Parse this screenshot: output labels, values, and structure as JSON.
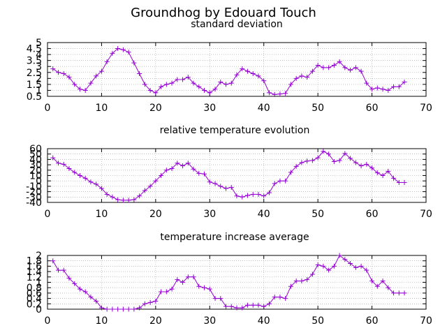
{
  "title": "Groundhog by Edouard Touch",
  "colors": {
    "series": "#9400d3",
    "grid": "#a0a0a0",
    "axis": "#000000"
  },
  "chart_data": [
    {
      "type": "line",
      "title": "standard deviation",
      "xlim": [
        0,
        70
      ],
      "ylim": [
        0.5,
        5
      ],
      "xticks": [
        0,
        10,
        20,
        30,
        40,
        50,
        60,
        70
      ],
      "xtick_labels": [
        "0",
        "10",
        "20",
        "30",
        "40",
        "50",
        "60",
        "70"
      ],
      "yticks": [
        0.5,
        1,
        1.5,
        2,
        2.5,
        3,
        3.5,
        4,
        4.5,
        5
      ],
      "ytick_labels": [
        "0.5",
        "1",
        "1.5",
        "2",
        "2.5",
        "3",
        "3.5",
        "4",
        "4.5",
        "5"
      ],
      "grid": true,
      "marker": "plus",
      "x": [
        1,
        2,
        3,
        4,
        5,
        6,
        7,
        8,
        9,
        10,
        11,
        12,
        13,
        14,
        15,
        16,
        17,
        18,
        19,
        20,
        21,
        22,
        23,
        24,
        25,
        26,
        27,
        28,
        29,
        30,
        31,
        32,
        33,
        34,
        35,
        36,
        37,
        38,
        39,
        40,
        41,
        42,
        43,
        44,
        45,
        46,
        47,
        48,
        49,
        50,
        51,
        52,
        53,
        54,
        55,
        56,
        57,
        58,
        59,
        60,
        61,
        62,
        63,
        64,
        65,
        66
      ],
      "y": [
        2.8,
        2.5,
        2.4,
        2.1,
        1.5,
        1.1,
        1.0,
        1.6,
        2.2,
        2.6,
        3.4,
        4.1,
        4.5,
        4.4,
        4.2,
        3.3,
        2.4,
        1.5,
        1.0,
        0.8,
        1.3,
        1.5,
        1.6,
        1.9,
        1.9,
        2.1,
        1.6,
        1.3,
        1.0,
        0.8,
        1.1,
        1.7,
        1.5,
        1.6,
        2.3,
        2.8,
        2.6,
        2.4,
        2.2,
        1.8,
        0.8,
        0.65,
        0.7,
        0.75,
        1.5,
        2.0,
        2.2,
        2.1,
        2.6,
        3.1,
        2.9,
        2.9,
        3.1,
        3.4,
        2.9,
        2.7,
        2.9,
        2.6,
        1.6,
        1.1,
        1.2,
        1.1,
        1.0,
        1.3,
        1.3,
        1.7
      ]
    },
    {
      "type": "line",
      "title": "relative temperature evolution",
      "xlim": [
        0,
        70
      ],
      "ylim": [
        -40,
        60
      ],
      "xticks": [
        0,
        10,
        20,
        30,
        40,
        50,
        60,
        70
      ],
      "xtick_labels": [
        "0",
        "10",
        "20",
        "30",
        "40",
        "50",
        "60",
        "70"
      ],
      "yticks": [
        -40,
        -30,
        -20,
        -10,
        0,
        10,
        20,
        30,
        40,
        50,
        60
      ],
      "ytick_labels": [
        "-40",
        "-30",
        "-20",
        "-10",
        "0",
        "10",
        "20",
        "30",
        "40",
        "50",
        "60"
      ],
      "grid": true,
      "marker": "plus",
      "x": [
        1,
        2,
        3,
        4,
        5,
        6,
        7,
        8,
        9,
        10,
        11,
        12,
        13,
        14,
        15,
        16,
        17,
        18,
        19,
        20,
        21,
        22,
        23,
        24,
        25,
        26,
        27,
        28,
        29,
        30,
        31,
        32,
        33,
        34,
        35,
        36,
        37,
        38,
        39,
        40,
        41,
        42,
        43,
        44,
        45,
        46,
        47,
        48,
        49,
        50,
        51,
        52,
        53,
        54,
        55,
        56,
        57,
        58,
        59,
        60,
        61,
        62,
        63,
        64,
        65,
        66
      ],
      "y": [
        43,
        33,
        31,
        23,
        16,
        10,
        5,
        -2,
        -6,
        -14,
        -25,
        -30,
        -35,
        -36,
        -36,
        -35,
        -28,
        -18,
        -10,
        0,
        10,
        20,
        23,
        33,
        28,
        33,
        22,
        14,
        13,
        -2,
        -5,
        -10,
        -14,
        -12,
        -28,
        -30,
        -27,
        -25,
        -25,
        -28,
        -22,
        -5,
        0,
        0,
        16,
        27,
        34,
        37,
        38,
        43,
        55,
        50,
        36,
        38,
        51,
        42,
        34,
        28,
        31,
        24,
        15,
        10,
        18,
        5,
        -3,
        -3
      ]
    },
    {
      "type": "line",
      "title": "temperature increase average",
      "xlim": [
        0,
        70
      ],
      "ylim": [
        0,
        2
      ],
      "xticks": [
        0,
        10,
        20,
        30,
        40,
        50,
        60,
        70
      ],
      "xtick_labels": [
        "0",
        "10",
        "20",
        "30",
        "40",
        "50",
        "60",
        "70"
      ],
      "yticks": [
        0,
        0.2,
        0.4,
        0.6,
        0.8,
        1,
        1.2,
        1.4,
        1.6,
        1.8,
        2
      ],
      "ytick_labels": [
        "0",
        "0.2",
        "0.4",
        "0.6",
        "0.8",
        "1",
        "1.2",
        "1.4",
        "1.6",
        "1.8",
        "2"
      ],
      "grid": true,
      "marker": "plus",
      "x": [
        1,
        2,
        3,
        4,
        5,
        6,
        7,
        8,
        9,
        10,
        11,
        12,
        13,
        14,
        15,
        16,
        17,
        18,
        19,
        20,
        21,
        22,
        23,
        24,
        25,
        26,
        27,
        28,
        29,
        30,
        31,
        32,
        33,
        34,
        35,
        36,
        37,
        38,
        39,
        40,
        41,
        42,
        43,
        44,
        45,
        46,
        47,
        48,
        49,
        50,
        51,
        52,
        53,
        54,
        55,
        56,
        57,
        58,
        59,
        60,
        61,
        62,
        63,
        64,
        65,
        66
      ],
      "y": [
        1.8,
        1.45,
        1.45,
        1.15,
        0.95,
        0.75,
        0.65,
        0.45,
        0.3,
        0.05,
        0,
        0,
        0,
        0,
        0,
        0,
        0.05,
        0.2,
        0.25,
        0.3,
        0.65,
        0.65,
        0.75,
        1.1,
        1.0,
        1.2,
        1.2,
        0.85,
        0.8,
        0.75,
        0.4,
        0.4,
        0.1,
        0.1,
        0.05,
        0.05,
        0.15,
        0.15,
        0.15,
        0.1,
        0.2,
        0.45,
        0.45,
        0.4,
        0.85,
        1.05,
        1.05,
        1.1,
        1.3,
        1.65,
        1.6,
        1.45,
        1.6,
        2.0,
        1.85,
        1.7,
        1.55,
        1.6,
        1.45,
        1.05,
        0.85,
        1.05,
        0.8,
        0.6,
        0.6,
        0.6
      ]
    }
  ]
}
